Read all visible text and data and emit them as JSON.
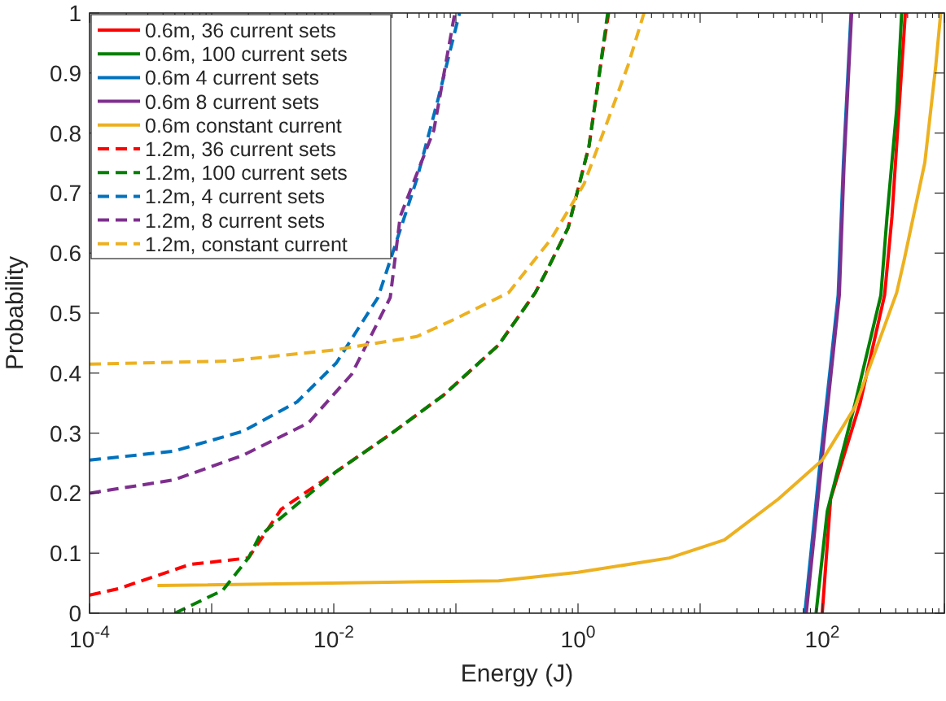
{
  "chart_data": {
    "type": "line",
    "xlabel": "Energy (J)",
    "ylabel": "Probability",
    "log": "x",
    "grid": false,
    "legend": "top left",
    "marker": "none",
    "xlim": [
      0.0001,
      1000
    ],
    "ylim": [
      0,
      1
    ],
    "xticks": [
      {
        "value": 0.0001,
        "label": "10$^{-4}$"
      },
      {
        "value": 0.0002,
        "label": null
      },
      {
        "value": 0.0003,
        "label": null
      },
      {
        "value": 0.0004,
        "label": null
      },
      {
        "value": 0.0005,
        "label": null
      },
      {
        "value": 0.0006,
        "label": null
      },
      {
        "value": 0.0007,
        "label": null
      },
      {
        "value": 0.0008,
        "label": null
      },
      {
        "value": 0.0009,
        "label": null
      },
      {
        "value": 0.001,
        "label": null
      },
      {
        "value": 0.002,
        "label": null
      },
      {
        "value": 0.003,
        "label": null
      },
      {
        "value": 0.004,
        "label": null
      },
      {
        "value": 0.005,
        "label": null
      },
      {
        "value": 0.006,
        "label": null
      },
      {
        "value": 0.007,
        "label": null
      },
      {
        "value": 0.008,
        "label": null
      },
      {
        "value": 0.009,
        "label": null
      },
      {
        "value": 0.01,
        "label": "10$^{-2}$"
      },
      {
        "value": 0.02,
        "label": null
      },
      {
        "value": 0.03,
        "label": null
      },
      {
        "value": 0.04,
        "label": null
      },
      {
        "value": 0.05,
        "label": null
      },
      {
        "value": 0.06,
        "label": null
      },
      {
        "value": 0.07,
        "label": null
      },
      {
        "value": 0.08,
        "label": null
      },
      {
        "value": 0.09,
        "label": null
      },
      {
        "value": 0.1,
        "label": null
      },
      {
        "value": 0.2,
        "label": null
      },
      {
        "value": 0.3,
        "label": null
      },
      {
        "value": 0.4,
        "label": null
      },
      {
        "value": 0.5,
        "label": null
      },
      {
        "value": 0.6,
        "label": null
      },
      {
        "value": 0.7,
        "label": null
      },
      {
        "value": 0.8,
        "label": null
      },
      {
        "value": 0.9,
        "label": null
      },
      {
        "value": 1,
        "label": "10$^{0}$"
      },
      {
        "value": 2,
        "label": null
      },
      {
        "value": 3,
        "label": null
      },
      {
        "value": 4,
        "label": null
      },
      {
        "value": 5,
        "label": null
      },
      {
        "value": 6,
        "label": null
      },
      {
        "value": 7,
        "label": null
      },
      {
        "value": 8,
        "label": null
      },
      {
        "value": 9,
        "label": null
      },
      {
        "value": 10,
        "label": null
      },
      {
        "value": 20,
        "label": null
      },
      {
        "value": 30,
        "label": null
      },
      {
        "value": 40,
        "label": null
      },
      {
        "value": 50,
        "label": null
      },
      {
        "value": 60,
        "label": null
      },
      {
        "value": 70,
        "label": null
      },
      {
        "value": 80,
        "label": null
      },
      {
        "value": 90,
        "label": null
      },
      {
        "value": 100,
        "label": "10$^{2}$"
      },
      {
        "value": 200,
        "label": null
      },
      {
        "value": 300,
        "label": null
      },
      {
        "value": 400,
        "label": null
      },
      {
        "value": 500,
        "label": null
      },
      {
        "value": 600,
        "label": null
      },
      {
        "value": 700,
        "label": null
      },
      {
        "value": 800,
        "label": null
      },
      {
        "value": 900,
        "label": null
      },
      {
        "value": 1000,
        "label": null
      }
    ],
    "yticks": [
      0,
      0.1,
      0.2,
      0.3,
      0.4,
      0.5,
      0.6,
      0.7,
      0.8,
      0.9,
      1
    ],
    "series": [
      {
        "name": "0.6m, 36 current sets",
        "color": "#ff0000",
        "line_style": "solid",
        "x": [
          100,
          117,
          204,
          324,
          372,
          479
        ],
        "values": [
          0,
          0.19,
          0.35,
          0.53,
          0.66,
          1
        ]
      },
      {
        "name": "0.6m, 100 current sets",
        "color": "#008000",
        "line_style": "solid",
        "x": [
          89,
          110,
          186,
          302,
          339,
          407,
          447
        ],
        "values": [
          0,
          0.17,
          0.35,
          0.53,
          0.66,
          0.84,
          1
        ]
      },
      {
        "name": "0.6m 4 current sets",
        "color": "#0072bd",
        "line_style": "solid",
        "x": [
          72,
          97,
          135,
          149,
          172
        ],
        "values": [
          0,
          0.26,
          0.53,
          0.75,
          1
        ]
      },
      {
        "name": "0.6m 8 current sets",
        "color": "#7e2f8e",
        "line_style": "solid",
        "x": [
          74,
          100,
          138,
          151,
          174
        ],
        "values": [
          0,
          0.26,
          0.53,
          0.75,
          1
        ]
      },
      {
        "name": "0.6m constant current",
        "color": "#edb120",
        "line_style": "solid",
        "x": [
          0.00036,
          0.224,
          1,
          5.6,
          15.8,
          43.6,
          100,
          186,
          407,
          468,
          692,
          851,
          933
        ],
        "values": [
          0.046,
          0.054,
          0.068,
          0.092,
          0.122,
          0.19,
          0.255,
          0.344,
          0.534,
          0.588,
          0.751,
          0.913,
          1
        ]
      },
      {
        "name": "1.2m, 36 current sets",
        "color": "#ff0000",
        "line_style": "dashed",
        "x": [
          0.0001,
          0.000174,
          0.00066,
          0.002,
          0.0037,
          0.0105,
          0.029,
          0.079,
          0.224,
          0.447,
          0.55,
          0.83,
          1.23,
          1.51,
          1.78
        ],
        "values": [
          0.03,
          0.041,
          0.081,
          0.092,
          0.173,
          0.236,
          0.298,
          0.363,
          0.447,
          0.534,
          0.569,
          0.642,
          0.778,
          0.905,
          1
        ]
      },
      {
        "name": "1.2m, 100 current sets",
        "color": "#008000",
        "line_style": "dashed",
        "x": [
          0.0005,
          0.00123,
          0.002,
          0.00245,
          0.0031,
          0.0105,
          0.029,
          0.079,
          0.224,
          0.447,
          0.55,
          0.83,
          1.23,
          1.51,
          1.75
        ],
        "values": [
          0,
          0.038,
          0.092,
          0.127,
          0.146,
          0.236,
          0.298,
          0.363,
          0.447,
          0.534,
          0.569,
          0.642,
          0.778,
          0.905,
          1
        ]
      },
      {
        "name": "1.2m, 4 current sets",
        "color": "#0072bd",
        "line_style": "dashed",
        "x": [
          0.0001,
          0.00049,
          0.0018,
          0.005,
          0.0105,
          0.023,
          0.029,
          0.048,
          0.072,
          0.107
        ],
        "values": [
          0.255,
          0.27,
          0.303,
          0.352,
          0.417,
          0.526,
          0.588,
          0.724,
          0.859,
          1
        ]
      },
      {
        "name": "1.2m, 8 current sets",
        "color": "#7e2f8e",
        "line_style": "dashed",
        "x": [
          0.0001,
          0.00049,
          0.0018,
          0.0062,
          0.014,
          0.029,
          0.035,
          0.066,
          0.098
        ],
        "values": [
          0.2,
          0.222,
          0.263,
          0.317,
          0.398,
          0.526,
          0.661,
          0.805,
          1
        ]
      },
      {
        "name": "1.2m, constant current",
        "color": "#edb120",
        "line_style": "dashed",
        "x": [
          0.0001,
          0.00135,
          0.0105,
          0.048,
          0.098,
          0.27,
          0.6,
          1.12,
          1.9,
          2.57,
          3.47
        ],
        "values": [
          0.415,
          0.42,
          0.439,
          0.461,
          0.49,
          0.534,
          0.623,
          0.715,
          0.84,
          0.913,
          1
        ]
      }
    ]
  }
}
